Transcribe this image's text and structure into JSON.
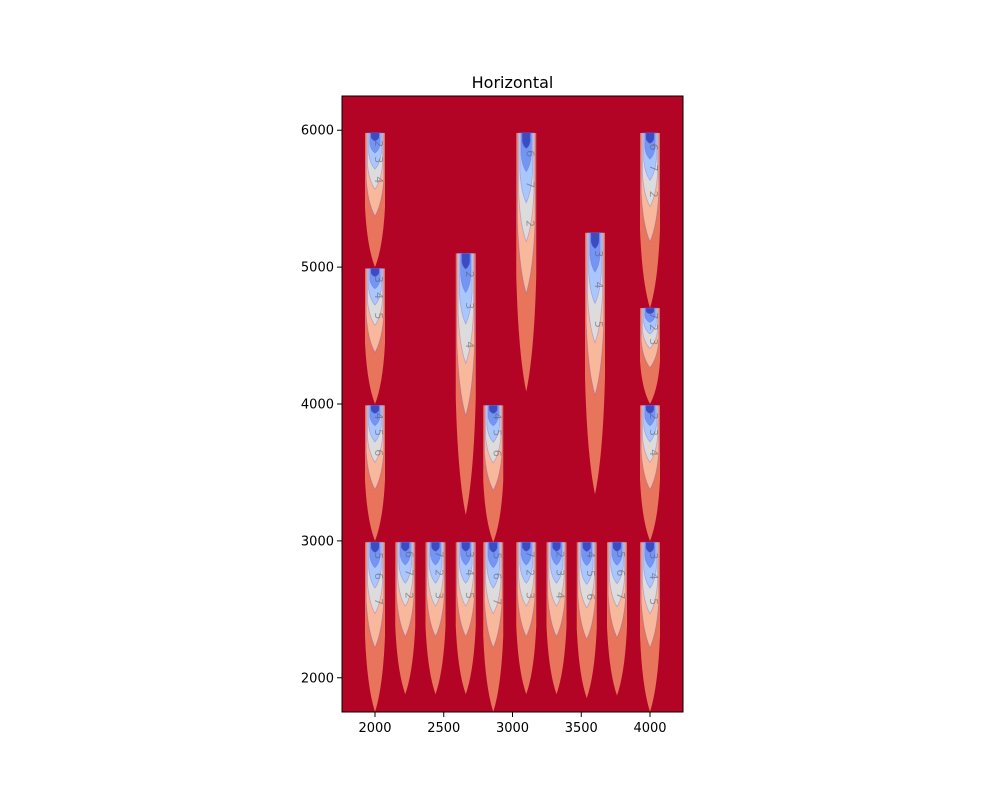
{
  "chart_data": {
    "type": "contourf",
    "title": "Horizontal",
    "xlabel": "",
    "ylabel": "",
    "xlim": [
      1760,
      4240
    ],
    "ylim": [
      1750,
      6250
    ],
    "xticks": [
      2000,
      2500,
      3000,
      3500,
      4000
    ],
    "yticks": [
      2000,
      3000,
      4000,
      5000,
      6000
    ],
    "grid": false,
    "colormap": "coolwarm",
    "background_color": "#b40426",
    "level_colors": [
      "#3b4cc0",
      "#7396f5",
      "#aac7fd",
      "#dddcdc",
      "#f7b89c",
      "#e7745b",
      "#b40426"
    ],
    "contour_level_labels": [
      "2",
      "3",
      "4",
      "5",
      "6",
      "7"
    ],
    "plumes": [
      {
        "x": 2000,
        "top": 5980,
        "bottom": 5000
      },
      {
        "x": 2000,
        "top": 4990,
        "bottom": 4000
      },
      {
        "x": 2000,
        "top": 3990,
        "bottom": 3000
      },
      {
        "x": 2000,
        "top": 2990,
        "bottom": 1750
      },
      {
        "x": 2220,
        "top": 2990,
        "bottom": 1880
      },
      {
        "x": 2440,
        "top": 2990,
        "bottom": 1880
      },
      {
        "x": 2660,
        "top": 5100,
        "bottom": 3190
      },
      {
        "x": 2660,
        "top": 2990,
        "bottom": 1880
      },
      {
        "x": 2860,
        "top": 3990,
        "bottom": 2990
      },
      {
        "x": 2860,
        "top": 2990,
        "bottom": 1750
      },
      {
        "x": 3100,
        "top": 5980,
        "bottom": 4090
      },
      {
        "x": 3100,
        "top": 2990,
        "bottom": 1880
      },
      {
        "x": 3320,
        "top": 2990,
        "bottom": 1880
      },
      {
        "x": 3600,
        "top": 5250,
        "bottom": 3340
      },
      {
        "x": 3540,
        "top": 2990,
        "bottom": 1850
      },
      {
        "x": 3760,
        "top": 2990,
        "bottom": 1870
      },
      {
        "x": 4000,
        "top": 5980,
        "bottom": 4700
      },
      {
        "x": 4000,
        "top": 4700,
        "bottom": 4000
      },
      {
        "x": 4000,
        "top": 3990,
        "bottom": 3000
      },
      {
        "x": 4000,
        "top": 2990,
        "bottom": 1750
      }
    ]
  }
}
